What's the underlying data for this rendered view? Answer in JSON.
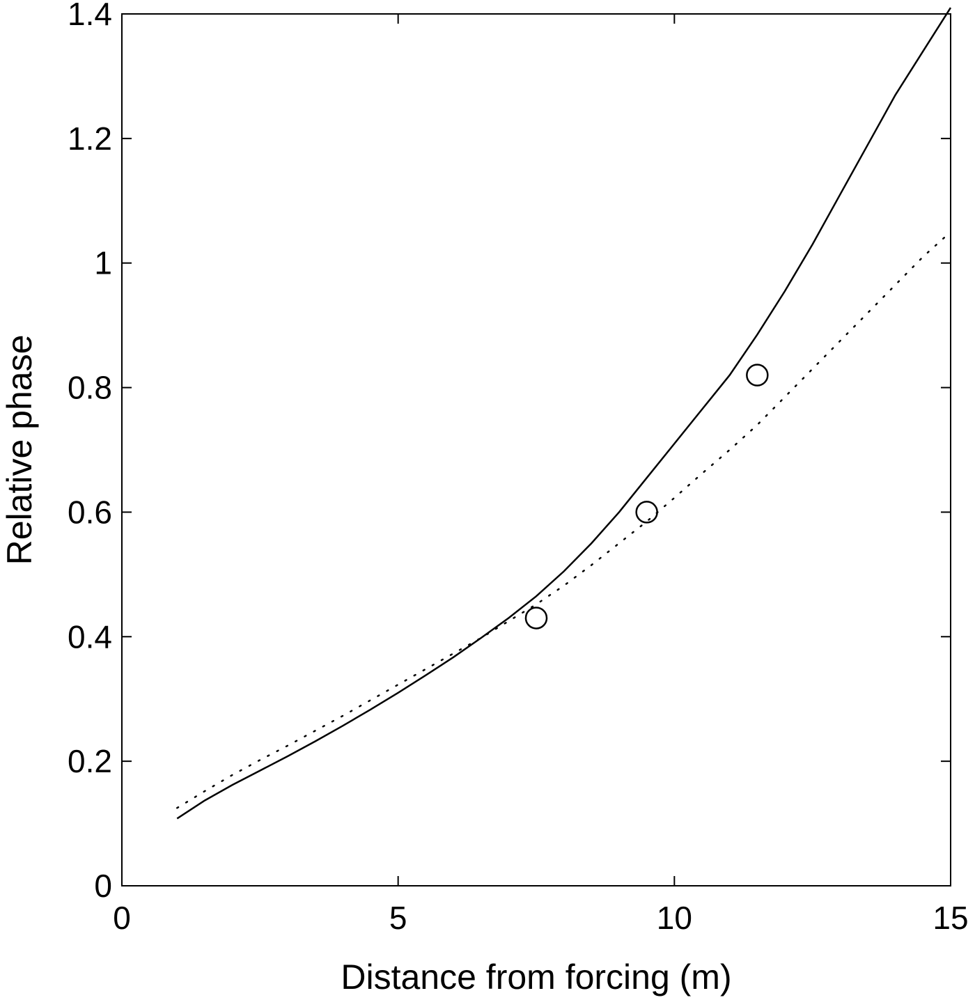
{
  "chart_data": {
    "type": "line",
    "title": "",
    "xlabel": "Distance from forcing (m)",
    "ylabel": "Relative phase",
    "xlim": [
      0,
      15
    ],
    "ylim": [
      0,
      1.4
    ],
    "xticks": [
      0,
      5,
      10,
      15
    ],
    "xtick_labels": [
      "0",
      "5",
      "10",
      "15"
    ],
    "yticks": [
      0,
      0.2,
      0.4,
      0.6,
      0.8,
      1.0,
      1.2,
      1.4
    ],
    "ytick_labels": [
      "0",
      "0.2",
      "0.4",
      "0.6",
      "0.8",
      "1",
      "1.2",
      "1.4"
    ],
    "grid": false,
    "series": [
      {
        "style": "solid",
        "x": [
          1,
          1.5,
          2,
          2.5,
          3,
          3.5,
          4,
          4.5,
          5,
          5.5,
          6,
          6.5,
          7,
          7.5,
          8,
          8.5,
          9,
          9.5,
          10,
          10.5,
          11,
          11.5,
          12,
          12.5,
          13,
          13.5,
          14,
          14.5,
          15
        ],
        "y": [
          0.108,
          0.137,
          0.162,
          0.185,
          0.208,
          0.232,
          0.257,
          0.283,
          0.31,
          0.338,
          0.367,
          0.398,
          0.43,
          0.465,
          0.505,
          0.55,
          0.6,
          0.655,
          0.71,
          0.765,
          0.82,
          0.885,
          0.955,
          1.03,
          1.11,
          1.19,
          1.27,
          1.34,
          1.41
        ]
      },
      {
        "style": "dotted",
        "x": [
          1,
          1.5,
          2,
          2.5,
          3,
          3.5,
          4,
          4.5,
          5,
          5.5,
          6,
          6.5,
          7,
          7.5,
          8,
          8.5,
          9,
          9.5,
          10,
          10.5,
          11,
          11.5,
          12,
          12.5,
          13,
          13.5,
          14,
          14.5,
          15
        ],
        "y": [
          0.125,
          0.152,
          0.178,
          0.202,
          0.225,
          0.249,
          0.273,
          0.298,
          0.323,
          0.348,
          0.373,
          0.398,
          0.425,
          0.452,
          0.482,
          0.515,
          0.55,
          0.585,
          0.623,
          0.662,
          0.7,
          0.74,
          0.785,
          0.83,
          0.875,
          0.92,
          0.965,
          1.01,
          1.05
        ]
      },
      {
        "style": "markers",
        "marker": "open-circle",
        "x": [
          7.5,
          9.5,
          11.5
        ],
        "y": [
          0.43,
          0.6,
          0.82
        ]
      }
    ]
  }
}
